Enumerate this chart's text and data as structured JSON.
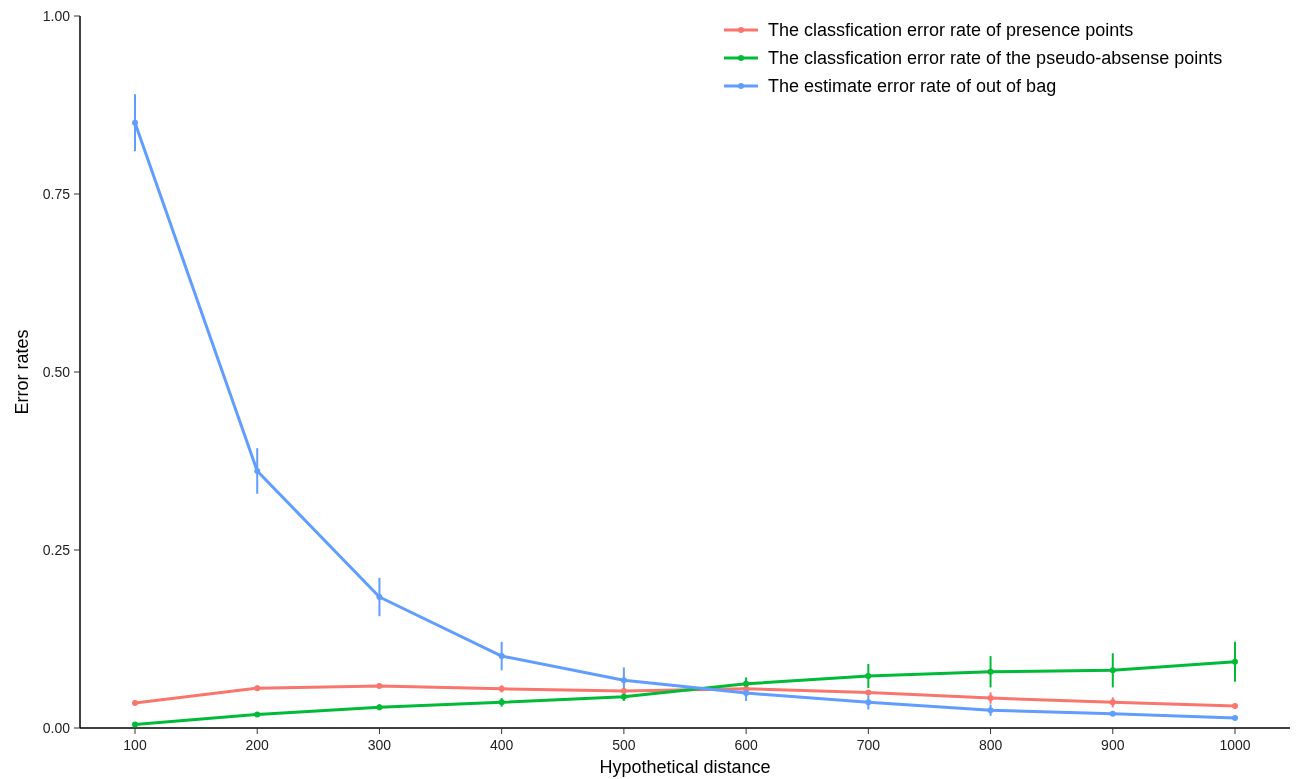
{
  "chart_data": {
    "type": "line",
    "xlabel": "Hypothetical distance",
    "ylabel": "Error rates",
    "x": [
      100,
      200,
      300,
      400,
      500,
      600,
      700,
      800,
      900,
      1000
    ],
    "xlim": [
      55,
      1045
    ],
    "xticks": [
      100,
      200,
      300,
      400,
      500,
      600,
      700,
      800,
      900,
      1000
    ],
    "ylim": [
      0,
      1
    ],
    "yticks": [
      {
        "value": 0,
        "label": "0.00"
      },
      {
        "value": 0.25,
        "label": "0.25"
      },
      {
        "value": 0.5,
        "label": "0.50"
      },
      {
        "value": 0.75,
        "label": "0.75"
      },
      {
        "value": 1,
        "label": "1.00"
      }
    ],
    "grid": false,
    "legend": "top right",
    "marker": "circle",
    "line_style": "solid",
    "series": [
      {
        "name": "The classfication error rate of presence points",
        "color": "#f8766d",
        "values": [
          0.035,
          0.056,
          0.059,
          0.055,
          0.052,
          0.055,
          0.05,
          0.042,
          0.036,
          0.031
        ],
        "errors": [
          null,
          0.004,
          null,
          0.005,
          null,
          null,
          null,
          0.008,
          0.007,
          0.004
        ]
      },
      {
        "name": "The classfication error rate of the pseudo-absense points",
        "color": "#00ba38",
        "values": [
          0.005,
          0.019,
          0.029,
          0.036,
          0.044,
          0.062,
          0.073,
          0.079,
          0.081,
          0.093
        ],
        "errors": [
          null,
          null,
          0.004,
          0.006,
          0.006,
          0.009,
          0.017,
          0.022,
          0.024,
          0.028
        ]
      },
      {
        "name": "The estimate error rate of out of bag",
        "color": "#619cff",
        "values": [
          0.85,
          0.361,
          0.184,
          0.101,
          0.067,
          0.049,
          0.036,
          0.025,
          0.02,
          0.014
        ],
        "errors": [
          0.04,
          0.032,
          0.027,
          0.02,
          0.018,
          0.011,
          0.01,
          0.008,
          0.003,
          null
        ]
      }
    ]
  }
}
